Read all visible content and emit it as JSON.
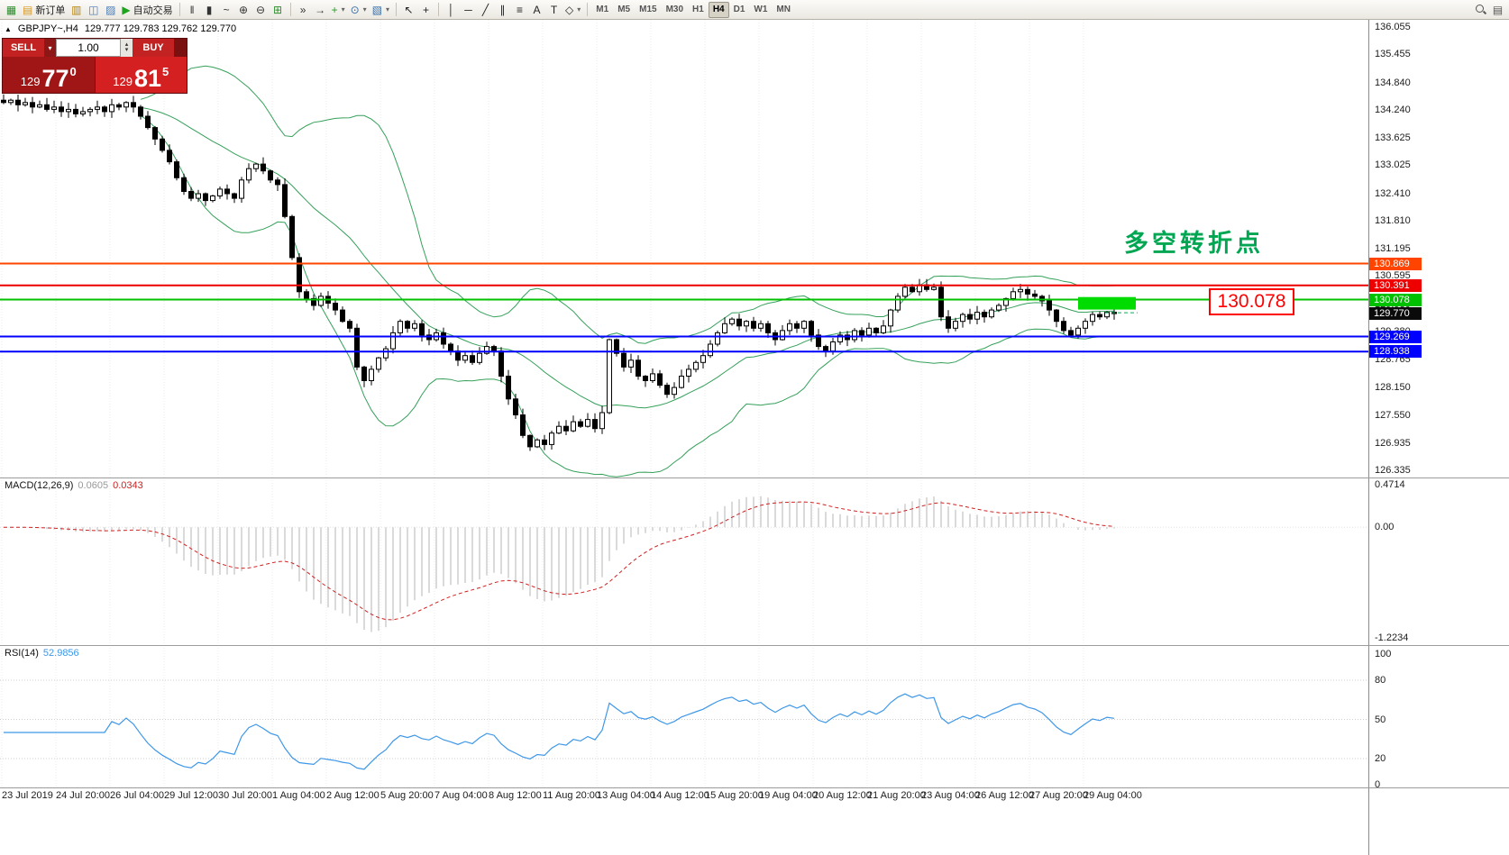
{
  "icons": {
    "caret_down": "▾",
    "caret_up": "▴",
    "collapse_triangle": "▲"
  },
  "toolbar": {
    "items": [
      {
        "name": "app-icon",
        "glyph": "▦",
        "color": "#2f8f2f"
      },
      {
        "name": "new-order-button",
        "icon": "new-order-icon",
        "glyph": "▤",
        "color": "#d49a2a",
        "label": "新订单"
      },
      {
        "name": "market-watch-icon",
        "glyph": "▥",
        "color": "#b8860b"
      },
      {
        "name": "data-window-icon",
        "glyph": "◫",
        "color": "#4a7ab5"
      },
      {
        "name": "navigator-icon",
        "glyph": "▨",
        "color": "#4a7ab5"
      },
      {
        "name": "autotrade-button",
        "icon": "autotrade-icon",
        "glyph": "▶",
        "color": "#1fa31f",
        "label": "自动交易"
      },
      {
        "sep": true
      },
      {
        "name": "bars-icon",
        "glyph": "‖",
        "color": "#333333"
      },
      {
        "name": "candles-icon",
        "glyph": "▮",
        "color": "#333333"
      },
      {
        "name": "line-chart-icon",
        "glyph": "~",
        "color": "#333333"
      },
      {
        "name": "zoom-in-icon",
        "glyph": "⊕",
        "color": "#333333"
      },
      {
        "name": "zoom-out-icon",
        "glyph": "⊖",
        "color": "#333333"
      },
      {
        "name": "grid-icon",
        "glyph": "⊞",
        "color": "#2f8f2f"
      },
      {
        "sep": true
      },
      {
        "name": "auto-scroll-icon",
        "glyph": "»",
        "color": "#333333"
      },
      {
        "name": "chart-shift-icon",
        "glyph": "→",
        "color": "#333333"
      },
      {
        "name": "new-chart-icon",
        "glyph": "+",
        "color": "#1fa31f",
        "caret": true
      },
      {
        "name": "periods-icon",
        "glyph": "⊙",
        "color": "#3a6ea5",
        "caret": true
      },
      {
        "name": "templates-icon",
        "glyph": "▧",
        "color": "#3a6ea5",
        "caret": true
      },
      {
        "sep": true
      },
      {
        "name": "cursor-icon",
        "glyph": "↖",
        "color": "#222222"
      },
      {
        "name": "crosshair-icon",
        "glyph": "+",
        "color": "#222222"
      },
      {
        "sep": true
      },
      {
        "name": "vertical-line-icon",
        "glyph": "│",
        "color": "#222222"
      },
      {
        "name": "horizontal-line-icon",
        "glyph": "─",
        "color": "#222222"
      },
      {
        "name": "trendline-icon",
        "glyph": "╱",
        "color": "#222222"
      },
      {
        "name": "channel-icon",
        "glyph": "∥",
        "color": "#222222"
      },
      {
        "name": "fibonacci-icon",
        "glyph": "≡",
        "color": "#222222"
      },
      {
        "name": "text-icon",
        "glyph": "A",
        "color": "#222222"
      },
      {
        "name": "label-icon",
        "glyph": "T",
        "color": "#222222"
      },
      {
        "name": "shapes-icon",
        "glyph": "◇",
        "color": "#222222",
        "caret": true
      },
      {
        "sep": true
      }
    ],
    "timeframes": [
      "M1",
      "M5",
      "M15",
      "M30",
      "H1",
      "H4",
      "D1",
      "W1",
      "MN"
    ],
    "active_timeframe": "H4",
    "right_items": [
      {
        "name": "search-icon",
        "css": "search"
      },
      {
        "name": "layout-icon",
        "glyph": "▤",
        "color": "#555555"
      }
    ]
  },
  "symbol_header": {
    "symbol": "GBPJPY~,H4",
    "ohlc": "129.777 129.783 129.762 129.770"
  },
  "trade_panel": {
    "sell_label": "SELL",
    "buy_label": "BUY",
    "volume": "1.00",
    "sell_price": {
      "small": "129",
      "big": "77",
      "sup": "0"
    },
    "buy_price": {
      "small": "129",
      "big": "81",
      "sup": "5"
    }
  },
  "annotations": {
    "turning_point_text": "多空转折点",
    "turning_point_color": "#00a651",
    "price_label_text": "130.078",
    "price_label_color": "#ff0000"
  },
  "macd_header": {
    "title": "MACD(12,26,9)",
    "main_value": "0.0605",
    "signal_value": "0.0343"
  },
  "rsi_header": {
    "title": "RSI(14)",
    "value": "52.9856"
  },
  "chart_data": {
    "type": "candlestick",
    "symbol": "GBPJPY",
    "period": "H4",
    "current_bar": {
      "open": 129.777,
      "high": 129.783,
      "low": 129.762,
      "close": 129.77
    },
    "y_axis_ticks": [
      "136.055",
      "135.455",
      "134.840",
      "134.240",
      "133.625",
      "133.025",
      "132.410",
      "131.810",
      "131.195",
      "130.595",
      "129.980",
      "129.380",
      "128.765",
      "128.150",
      "127.550",
      "126.935",
      "126.335"
    ],
    "x_axis_ticks": [
      "23 Jul 2019",
      "24 Jul 20:00",
      "26 Jul 04:00",
      "29 Jul 12:00",
      "30 Jul 20:00",
      "1 Aug 04:00",
      "2 Aug 12:00",
      "5 Aug 20:00",
      "7 Aug 04:00",
      "8 Aug 12:00",
      "11 Aug 20:00",
      "13 Aug 04:00",
      "14 Aug 12:00",
      "15 Aug 20:00",
      "19 Aug 04:00",
      "20 Aug 12:00",
      "21 Aug 20:00",
      "23 Aug 04:00",
      "26 Aug 12:00",
      "27 Aug 20:00",
      "29 Aug 04:00"
    ],
    "levels": [
      {
        "value": 130.869,
        "label": "130.869",
        "color": "#ff4400",
        "width": 2
      },
      {
        "value": 130.391,
        "label": "130.391",
        "color": "#ee0000",
        "width": 2
      },
      {
        "value": 130.078,
        "label": "130.078",
        "color": "#00c100",
        "width": 2
      },
      {
        "value": 129.269,
        "label": "129.269",
        "color": "#0000ff",
        "width": 2
      },
      {
        "value": 128.938,
        "label": "128.938",
        "color": "#0000ff",
        "width": 2
      }
    ],
    "current_price_marker": {
      "label": "129.770",
      "value": 129.77,
      "bg": "#0a0a0a"
    },
    "highlight_rect": {
      "from_index": 149,
      "to_index": 157,
      "price_top": 130.135,
      "price_bottom": 129.86,
      "color": "#00dc00"
    },
    "ask_line_fragment": {
      "value": 129.79,
      "color": "#00b050"
    },
    "bollinger": {
      "period": 20,
      "deviation": 2,
      "color": "#35a05a"
    },
    "candles": {
      "first_open": 134.45,
      "closes": [
        134.4,
        134.45,
        134.35,
        134.4,
        134.3,
        134.35,
        134.25,
        134.3,
        134.2,
        134.25,
        134.15,
        134.2,
        134.25,
        134.3,
        134.2,
        134.35,
        134.3,
        134.4,
        134.3,
        134.1,
        133.85,
        133.6,
        133.35,
        133.1,
        132.75,
        132.45,
        132.3,
        132.4,
        132.25,
        132.35,
        132.5,
        132.4,
        132.3,
        132.7,
        132.95,
        133.05,
        132.9,
        132.7,
        132.6,
        131.9,
        131.0,
        130.25,
        130.1,
        129.95,
        130.15,
        130.0,
        129.85,
        129.6,
        129.45,
        128.6,
        128.3,
        128.55,
        128.8,
        129.0,
        129.35,
        129.6,
        129.45,
        129.55,
        129.3,
        129.2,
        129.35,
        129.1,
        128.95,
        128.75,
        128.85,
        128.7,
        128.9,
        129.05,
        128.95,
        128.4,
        127.9,
        127.55,
        127.1,
        126.85,
        127.0,
        126.9,
        127.15,
        127.3,
        127.2,
        127.4,
        127.3,
        127.45,
        127.25,
        127.6,
        129.2,
        128.9,
        128.6,
        128.75,
        128.4,
        128.3,
        128.45,
        128.2,
        128.0,
        128.15,
        128.4,
        128.55,
        128.7,
        128.85,
        129.1,
        129.35,
        129.55,
        129.65,
        129.5,
        129.6,
        129.45,
        129.55,
        129.35,
        129.2,
        129.4,
        129.55,
        129.45,
        129.6,
        129.3,
        129.05,
        128.95,
        129.15,
        129.3,
        129.2,
        129.4,
        129.3,
        129.45,
        129.35,
        129.5,
        129.85,
        130.15,
        130.35,
        130.25,
        130.4,
        130.3,
        130.35,
        129.7,
        129.45,
        129.6,
        129.75,
        129.65,
        129.8,
        129.7,
        129.85,
        129.95,
        130.1,
        130.25,
        130.3,
        130.2,
        130.15,
        130.05,
        129.85,
        129.6,
        129.4,
        129.3,
        129.45,
        129.6,
        129.75,
        129.7,
        129.8,
        129.77
      ]
    },
    "macd": {
      "fast": 12,
      "slow": 26,
      "signal": 9,
      "axis_ticks": [
        "0.4714",
        "0.00",
        "-1.2234"
      ],
      "range": [
        -1.2234,
        0.4714
      ],
      "histogram_color": "#b6b6b6",
      "signal_color": "#cf2020"
    },
    "rsi": {
      "period": 14,
      "axis_ticks": [
        "100",
        "80",
        "50",
        "20",
        "0"
      ],
      "levels": [
        80,
        50,
        20
      ],
      "color": "#3e97e8"
    }
  }
}
